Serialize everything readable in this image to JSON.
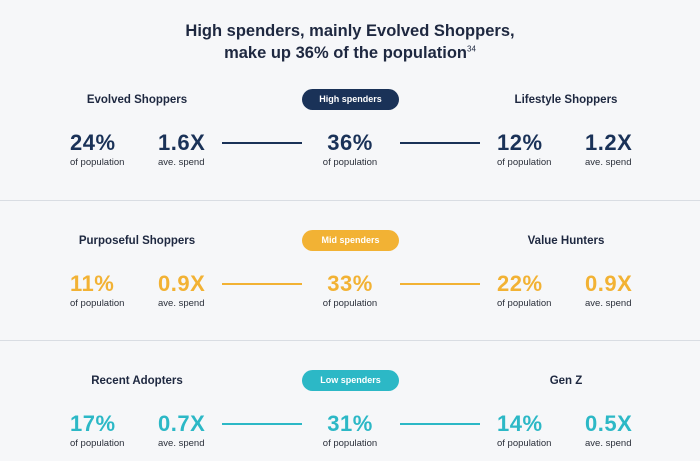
{
  "title": {
    "line1": "High spenders, mainly Evolved Shoppers,",
    "line2": "make up 36% of the population",
    "footnote": "34"
  },
  "colors": {
    "high": "#1a3258",
    "mid": "#f2b234",
    "low": "#2cb8c6"
  },
  "tiers": [
    {
      "label": "High spenders",
      "total_pct": "36%",
      "total_label": "of population",
      "left": {
        "name": "Evolved Shoppers",
        "pct": "24%",
        "pct_label": "of population",
        "spend": "1.6X",
        "spend_label": "ave. spend"
      },
      "right": {
        "name": "Lifestyle Shoppers",
        "pct": "12%",
        "pct_label": "of population",
        "spend": "1.2X",
        "spend_label": "ave. spend"
      }
    },
    {
      "label": "Mid spenders",
      "total_pct": "33%",
      "total_label": "of population",
      "left": {
        "name": "Purposeful Shoppers",
        "pct": "11%",
        "pct_label": "of population",
        "spend": "0.9X",
        "spend_label": "ave. spend"
      },
      "right": {
        "name": "Value Hunters",
        "pct": "22%",
        "pct_label": "of population",
        "spend": "0.9X",
        "spend_label": "ave. spend"
      }
    },
    {
      "label": "Low spenders",
      "total_pct": "31%",
      "total_label": "of population",
      "left": {
        "name": "Recent Adopters",
        "pct": "17%",
        "pct_label": "of population",
        "spend": "0.7X",
        "spend_label": "ave. spend"
      },
      "right": {
        "name": "Gen Z",
        "pct": "14%",
        "pct_label": "of population",
        "spend": "0.5X",
        "spend_label": "ave. spend"
      }
    }
  ]
}
